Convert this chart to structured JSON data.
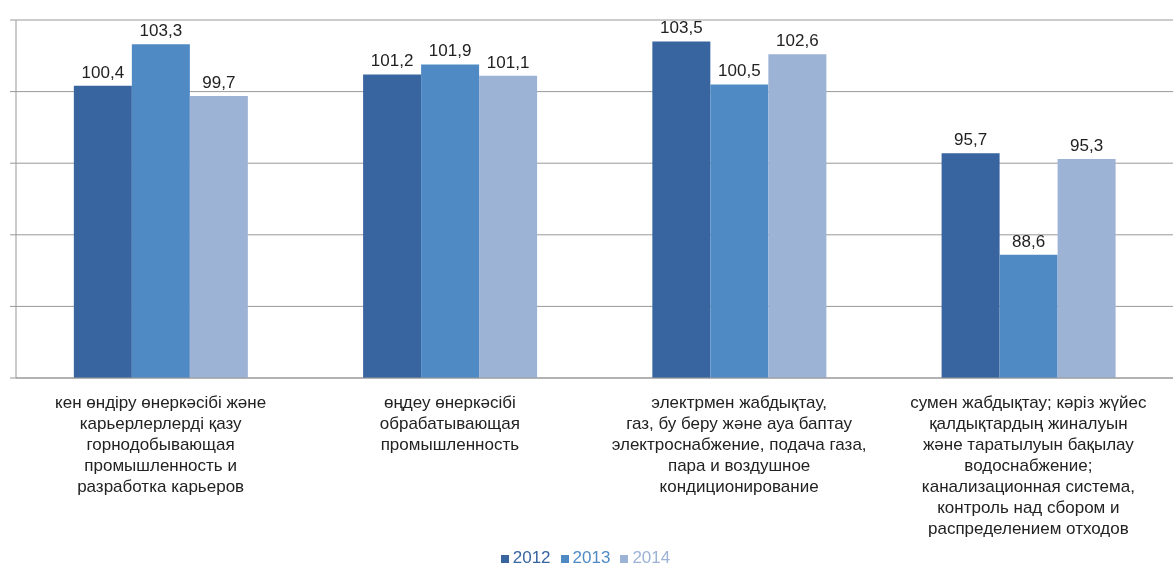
{
  "chart_data": {
    "type": "bar",
    "categories": [
      "кен өндіру өнеркәсібі және\nкарьерлерлерді қазу\nгорнодобывающая\nпромышленность и\nразработка карьеров",
      "өңдеу өнеркәсібі\nобрабатывающая\nпромышленность",
      "электрмен жабдықтау,\nгаз, бу беру және ауа баптау\nэлектроснабжение, подача газа,\nпара и воздушное\nкондиционирование",
      "сумен жабдықтау; кәріз жүйес\nқалдықтардың жиналуын\nжәне таратылуын бақылау\nводоснабжение;\nканализационная система,\nконтроль над сбором и\nраспределением отходов"
    ],
    "series": [
      {
        "name": "2012",
        "color": "#3864a0",
        "values": [
          100.4,
          101.2,
          103.5,
          95.7
        ],
        "value_labels": [
          "100,4",
          "101,2",
          "103,5",
          "95,7"
        ]
      },
      {
        "name": "2013",
        "color": "#508ac4",
        "values": [
          103.3,
          101.9,
          100.5,
          88.6
        ],
        "value_labels": [
          "103,3",
          "101,9",
          "100,5",
          "88,6"
        ]
      },
      {
        "name": "2014",
        "color": "#9db3d6",
        "values": [
          99.7,
          101.1,
          102.6,
          95.3
        ],
        "value_labels": [
          "99,7",
          "101,1",
          "102,6",
          "95,3"
        ]
      }
    ],
    "ylim": [
      80,
      105
    ],
    "yticks": [
      {
        "value": 80,
        "label": null
      },
      {
        "value": 85,
        "label": null
      },
      {
        "value": 90,
        "label": null
      },
      {
        "value": 95,
        "label": null
      },
      {
        "value": 100,
        "label": null
      },
      {
        "value": 105,
        "label": null
      }
    ],
    "tick_labels": "x",
    "grid": "y",
    "legend": "bottom"
  }
}
